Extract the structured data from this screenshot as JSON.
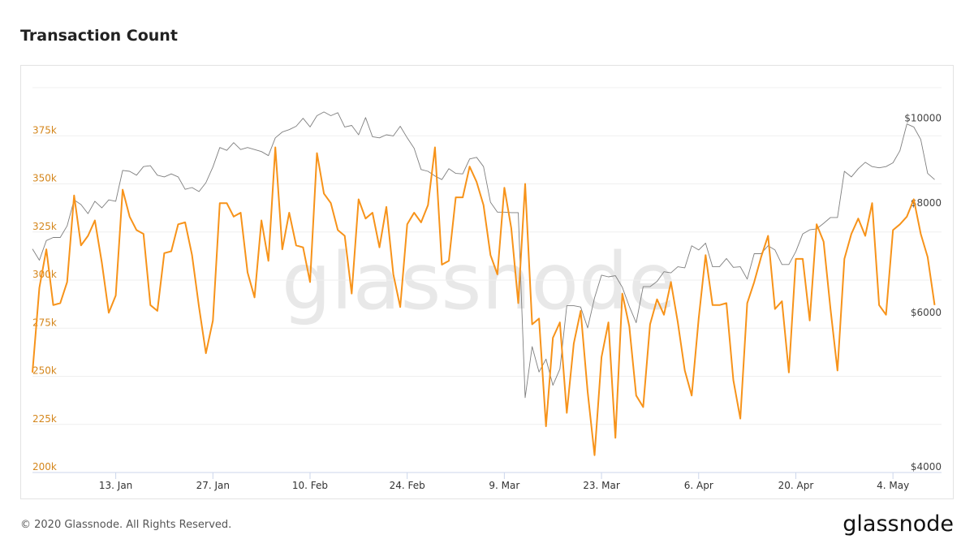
{
  "chart_data": {
    "type": "line",
    "title": "Transaction Count",
    "watermark": "glassnode",
    "footer": "© 2020 Glassnode. All Rights Reserved.",
    "brand": "glassnode",
    "x": [
      1,
      2,
      3,
      4,
      5,
      6,
      7,
      8,
      9,
      10,
      11,
      12,
      13,
      14,
      15,
      16,
      17,
      18,
      19,
      20,
      21,
      22,
      23,
      24,
      25,
      26,
      27,
      28,
      29,
      30,
      31,
      32,
      33,
      34,
      35,
      36,
      37,
      38,
      39,
      40,
      41,
      42,
      43,
      44,
      45,
      46,
      47,
      48,
      49,
      50,
      51,
      52,
      53,
      54,
      55,
      56,
      57,
      58,
      59,
      60,
      61,
      62,
      63,
      64,
      65,
      66,
      67,
      68,
      69,
      70,
      71,
      72,
      73,
      74,
      75,
      76,
      77,
      78,
      79,
      80,
      81,
      82,
      83,
      84,
      85,
      86,
      87,
      88,
      89,
      90,
      91,
      92,
      93,
      94,
      95,
      96,
      97,
      98,
      99,
      100,
      101,
      102,
      103,
      104,
      105,
      106,
      107,
      108,
      109,
      110,
      111,
      112,
      113,
      114,
      115,
      116,
      117,
      118,
      119,
      120,
      121,
      122,
      123,
      124,
      125,
      126,
      127,
      128,
      129,
      130,
      131
    ],
    "xlim": [
      1,
      132
    ],
    "xticks": [
      {
        "value": 13,
        "label": "13. Jan"
      },
      {
        "value": 27,
        "label": "27. Jan"
      },
      {
        "value": 41,
        "label": "10. Feb"
      },
      {
        "value": 55,
        "label": "24. Feb"
      },
      {
        "value": 69,
        "label": "9. Mar"
      },
      {
        "value": 83,
        "label": "23. Mar"
      },
      {
        "value": 97,
        "label": "6. Apr"
      },
      {
        "value": 111,
        "label": "20. Apr"
      },
      {
        "value": 125,
        "label": "4. May"
      }
    ],
    "ylim": [
      200000,
      400000
    ],
    "yticks": [
      {
        "value": 200000,
        "label": "200k"
      },
      {
        "value": 225000,
        "label": "225k"
      },
      {
        "value": 250000,
        "label": "250k"
      },
      {
        "value": 275000,
        "label": "275k"
      },
      {
        "value": 300000,
        "label": "300k"
      },
      {
        "value": 325000,
        "label": "325k"
      },
      {
        "value": 350000,
        "label": "350k"
      },
      {
        "value": 375000,
        "label": "375k"
      }
    ],
    "y2lim": [
      4000,
      11000
    ],
    "y2log": true,
    "y2ticks": [
      {
        "value": 4000,
        "label": "$4000"
      },
      {
        "value": 6000,
        "label": "$6000"
      },
      {
        "value": 8000,
        "label": "$8000"
      },
      {
        "value": 10000,
        "label": "$10000"
      }
    ],
    "grid": true,
    "series": [
      {
        "color": "#f7931a",
        "values": [
          252000,
          296000,
          316000,
          287000,
          288000,
          299000,
          344000,
          318000,
          323000,
          331000,
          309000,
          283000,
          292000,
          347000,
          333000,
          326000,
          324000,
          287000,
          284000,
          314000,
          315000,
          329000,
          330000,
          313000,
          286000,
          262000,
          279000,
          340000,
          340000,
          333000,
          335000,
          304000,
          291000,
          331000,
          310000,
          369000,
          316000,
          335000,
          318000,
          317000,
          299000,
          366000,
          345000,
          340000,
          326000,
          323000,
          293000,
          342000,
          332000,
          335000,
          317000,
          338000,
          303000,
          286000,
          329000,
          335000,
          330000,
          339000,
          369000,
          308000,
          310000,
          343000,
          343000,
          359000,
          351000,
          339000,
          313000,
          303000,
          348000,
          327000,
          288000,
          350000,
          277000,
          280000,
          224000,
          270000,
          278000,
          231000,
          267000,
          284000,
          242000,
          209000,
          260000,
          278000,
          218000,
          293000,
          276000,
          240000,
          234000,
          277000,
          290000,
          282000,
          299000,
          278000,
          253000,
          240000,
          280000,
          313000,
          287000,
          287000,
          288000,
          248000,
          228000,
          288000,
          299000,
          312000,
          323000,
          285000,
          289000,
          252000,
          311000,
          311000,
          279000,
          329000,
          320000,
          285000,
          253000,
          311000,
          324000,
          332000,
          323000,
          340000,
          287000,
          282000,
          326000,
          329000,
          333000,
          342000,
          324000,
          312000,
          287000
        ]
      },
      {
        "color": "#7f7f7f",
        "axis": "y2",
        "values": [
          7200,
          6990,
          7360,
          7420,
          7420,
          7650,
          8190,
          8090,
          7900,
          8160,
          8020,
          8190,
          8160,
          8850,
          8830,
          8740,
          8940,
          8960,
          8740,
          8700,
          8770,
          8700,
          8420,
          8460,
          8370,
          8570,
          8930,
          9400,
          9330,
          9520,
          9350,
          9400,
          9350,
          9300,
          9200,
          9640,
          9790,
          9850,
          9940,
          10150,
          9920,
          10220,
          10320,
          10220,
          10300,
          9920,
          9960,
          9720,
          10170,
          9670,
          9640,
          9720,
          9690,
          9940,
          9640,
          9380,
          8870,
          8830,
          8720,
          8640,
          8890,
          8780,
          8770,
          9120,
          9160,
          8940,
          8140,
          7930,
          7930,
          7920,
          7920,
          4870,
          5570,
          5210,
          5390,
          5030,
          5250,
          6200,
          6200,
          6180,
          5850,
          6330,
          6720,
          6690,
          6710,
          6510,
          6190,
          5930,
          6520,
          6520,
          6610,
          6780,
          6760,
          6870,
          6850,
          7260,
          7180,
          7310,
          6870,
          6870,
          7020,
          6860,
          6870,
          6650,
          7110,
          7110,
          7260,
          7180,
          6910,
          6910,
          7150,
          7490,
          7570,
          7590,
          7700,
          7820,
          7820,
          8830,
          8700,
          8890,
          9040,
          8940,
          8910,
          8940,
          9030,
          9320,
          10000,
          9920,
          9600,
          8780,
          8640
        ]
      }
    ]
  }
}
